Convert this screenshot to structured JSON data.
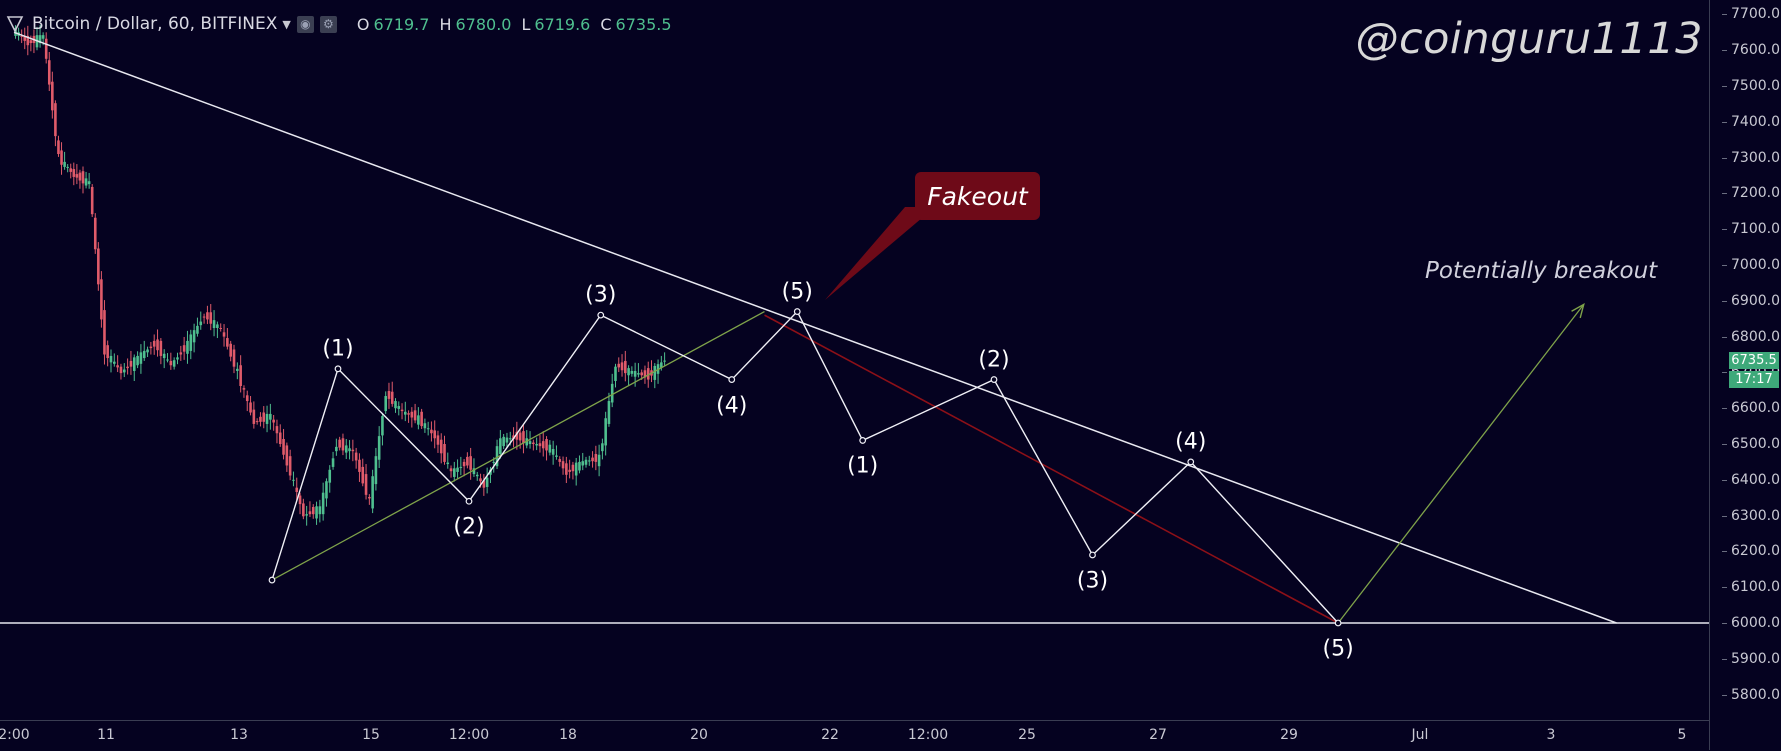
{
  "header": {
    "symbol": "Bitcoin / Dollar, 60, BITFINEX",
    "ohlc": [
      {
        "k": "O",
        "v": "6719.7"
      },
      {
        "k": "H",
        "v": "6780.0"
      },
      {
        "k": "L",
        "v": "6719.6"
      },
      {
        "k": "C",
        "v": "6735.5"
      }
    ]
  },
  "watermark": "@coinguru1113",
  "price_badge": {
    "value": "6735.5",
    "countdown": "17:17"
  },
  "colors": {
    "up": "#4fbf8f",
    "down": "#e05b6a",
    "background": "#050220",
    "price_badge": "#3ea97a",
    "fakeout_box": "#6e0a18",
    "green_line": "#7fa34a",
    "red_line": "#8c1018"
  },
  "chart_data": {
    "type": "line",
    "instrument": "Bitcoin / Dollar, 60, BITFINEX",
    "y_axis": {
      "ylim": [
        5700,
        7760
      ],
      "ticks": [
        7700,
        7600,
        7500,
        7400,
        7300,
        7200,
        7100,
        7000,
        6900,
        6800,
        6700,
        6600,
        6500,
        6400,
        6300,
        6200,
        6100,
        6000,
        5900,
        5800
      ],
      "tick_labels": [
        "7700.0",
        "7600.0",
        "7500.0",
        "7400.0",
        "7300.0",
        "7200.0",
        "7100.0",
        "7000.0",
        "6900.0",
        "6800.0",
        "6700.0",
        "6600.0",
        "6500.0",
        "6400.0",
        "6300.0",
        "6200.0",
        "6100.0",
        "6000.0",
        "5900.0",
        "5800.0"
      ]
    },
    "x_axis": {
      "tick_values": [
        "Jun 9 12:00",
        "Jun 11",
        "Jun 13",
        "Jun 15",
        "Jun 16 12:00",
        "Jun 18",
        "Jun 20",
        "Jun 22",
        "Jun 23 12:00",
        "Jun 25",
        "Jun 27",
        "Jun 29",
        "Jul 1",
        "Jul 3",
        "Jul 5"
      ],
      "tick_labels": [
        "2:00",
        "11",
        "13",
        "15",
        "12:00",
        "18",
        "20",
        "22",
        "12:00",
        "25",
        "27",
        "29",
        "Jul",
        "3",
        "5"
      ]
    },
    "price_path": [
      {
        "x": "Jun 9 12:00",
        "y": 7660
      },
      {
        "x": "Jun 9 18:00",
        "y": 7620
      },
      {
        "x": "Jun 10 00:00",
        "y": 7640
      },
      {
        "x": "Jun 10 06:00",
        "y": 7300
      },
      {
        "x": "Jun 10 12:00",
        "y": 7250
      },
      {
        "x": "Jun 10 18:00",
        "y": 7230
      },
      {
        "x": "Jun 11 00:00",
        "y": 6760
      },
      {
        "x": "Jun 11 06:00",
        "y": 6700
      },
      {
        "x": "Jun 11 12:00",
        "y": 6740
      },
      {
        "x": "Jun 11 18:00",
        "y": 6780
      },
      {
        "x": "Jun 12 00:00",
        "y": 6720
      },
      {
        "x": "Jun 12 06:00",
        "y": 6780
      },
      {
        "x": "Jun 12 12:00",
        "y": 6860
      },
      {
        "x": "Jun 12 18:00",
        "y": 6820
      },
      {
        "x": "Jun 13 00:00",
        "y": 6700
      },
      {
        "x": "Jun 13 06:00",
        "y": 6560
      },
      {
        "x": "Jun 13 12:00",
        "y": 6580
      },
      {
        "x": "Jun 13 18:00",
        "y": 6450
      },
      {
        "x": "Jun 14 00:00",
        "y": 6300
      },
      {
        "x": "Jun 14 06:00",
        "y": 6320
      },
      {
        "x": "Jun 14 12:00",
        "y": 6500
      },
      {
        "x": "Jun 14 18:00",
        "y": 6480
      },
      {
        "x": "Jun 15 00:00",
        "y": 6340
      },
      {
        "x": "Jun 15 06:00",
        "y": 6640
      },
      {
        "x": "Jun 15 12:00",
        "y": 6590
      },
      {
        "x": "Jun 15 18:00",
        "y": 6570
      },
      {
        "x": "Jun 16 00:00",
        "y": 6520
      },
      {
        "x": "Jun 16 06:00",
        "y": 6420
      },
      {
        "x": "Jun 16 12:00",
        "y": 6450
      },
      {
        "x": "Jun 16 18:00",
        "y": 6380
      },
      {
        "x": "Jun 17 00:00",
        "y": 6510
      },
      {
        "x": "Jun 17 06:00",
        "y": 6520
      },
      {
        "x": "Jun 17 12:00",
        "y": 6500
      },
      {
        "x": "Jun 17 18:00",
        "y": 6490
      },
      {
        "x": "Jun 18 00:00",
        "y": 6420
      },
      {
        "x": "Jun 18 06:00",
        "y": 6450
      },
      {
        "x": "Jun 18 12:00",
        "y": 6460
      },
      {
        "x": "Jun 18 18:00",
        "y": 6720
      },
      {
        "x": "Jun 19 00:00",
        "y": 6700
      },
      {
        "x": "Jun 19 06:00",
        "y": 6690
      },
      {
        "x": "Jun 19 12:00",
        "y": 6735
      }
    ],
    "resistance_line": {
      "label": "",
      "points": [
        {
          "x": "Jun 9 12:00",
          "y": 7650
        },
        {
          "x": "Jul 4",
          "y": 6000
        }
      ]
    },
    "support_line": {
      "label": "",
      "y": 6000
    },
    "green_trendline": {
      "points": [
        {
          "x": "Jun 13 12:00",
          "y": 6120
        },
        {
          "x": "Jun 21",
          "y": 6870
        }
      ]
    },
    "green_projection": {
      "points": [
        {
          "x": "Jun 29 18:00",
          "y": 6000
        },
        {
          "x": "Jul 3 12:00",
          "y": 6890
        }
      ]
    },
    "red_projection": {
      "points": [
        {
          "x": "Jun 21",
          "y": 6860
        },
        {
          "x": "Jun 29 18:00",
          "y": 6000
        }
      ]
    },
    "wave_path": [
      {
        "x": "Jun 13 12:00",
        "y": 6120
      },
      {
        "x": "Jun 14 12:00",
        "y": 6710
      },
      {
        "x": "Jun 16 12:00",
        "y": 6340
      },
      {
        "x": "Jun 18 12:00",
        "y": 6860
      },
      {
        "x": "Jun 20 12:00",
        "y": 6680
      },
      {
        "x": "Jun 21 12:00",
        "y": 6870
      },
      {
        "x": "Jun 22 12:00",
        "y": 6510
      },
      {
        "x": "Jun 24 12:00",
        "y": 6680
      },
      {
        "x": "Jun 26 00:00",
        "y": 6190
      },
      {
        "x": "Jun 27 12:00",
        "y": 6450
      },
      {
        "x": "Jun 29 18:00",
        "y": 6000
      }
    ],
    "wave_labels": [
      {
        "text": "(1)",
        "x": "Jun 14 12:00"
      },
      {
        "text": "(2)",
        "x": "Jun 16 12:00"
      },
      {
        "text": "(3)",
        "x": "Jun 18 12:00"
      },
      {
        "text": "(4)",
        "x": "Jun 20 12:00"
      },
      {
        "text": "(5)",
        "x": "Jun 21 12:00"
      },
      {
        "text": "(1)",
        "x": "Jun 22 12:00"
      },
      {
        "text": "(2)",
        "x": "Jun 24 12:00"
      },
      {
        "text": "(3)",
        "x": "Jun 26 00:00"
      },
      {
        "text": "(4)",
        "x": "Jun 27 12:00"
      },
      {
        "text": "(5)",
        "x": "Jun 29 18:00"
      }
    ],
    "annotations": [
      "Fakeout",
      "Potentially breakout"
    ],
    "grid": false
  }
}
